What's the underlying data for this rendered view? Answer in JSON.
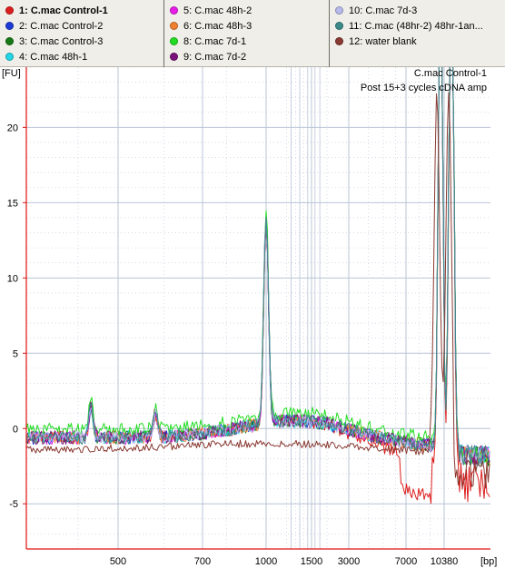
{
  "legend": {
    "columns": [
      [
        {
          "id": "s1",
          "label": "1: C.mac Control-1",
          "color": "#dd1d1d",
          "selected": true
        },
        {
          "id": "s2",
          "label": "2: C.mac Control-2",
          "color": "#1c3bd6"
        },
        {
          "id": "s3",
          "label": "3: C.mac Control-3",
          "color": "#167a16"
        },
        {
          "id": "s4",
          "label": "4: C.mac 48h-1",
          "color": "#22d6e6"
        }
      ],
      [
        {
          "id": "s5",
          "label": "5: C.mac 48h-2",
          "color": "#e81ee8"
        },
        {
          "id": "s6",
          "label": "6: C.mac 48h-3",
          "color": "#f08030"
        },
        {
          "id": "s7",
          "label": "8: C.mac 7d-1",
          "color": "#22dd22"
        },
        {
          "id": "s8",
          "label": "9: C.mac 7d-2",
          "color": "#7a147a"
        }
      ],
      [
        {
          "id": "s9",
          "label": "10: C.mac 7d-3",
          "color": "#b8baee"
        },
        {
          "id": "s10",
          "label": "11: C.mac (48hr-2) 48hr-1an...",
          "color": "#3b8a8a"
        },
        {
          "id": "s11",
          "label": "12: water blank",
          "color": "#8a3a32"
        }
      ]
    ]
  },
  "annotation": {
    "line1": "C.mac Control-1",
    "line2": "Post 15+3 cycles cDNA amp"
  },
  "colors": {
    "legend_bg": "#efeee8",
    "grid": "#b9c4d6",
    "axis": "#e01010",
    "plot_bg": "#ffffff"
  },
  "chart_data": {
    "type": "line",
    "title": "",
    "ylabel": "[FU]",
    "xlabel": "[bp]",
    "ylim": [
      -8,
      24
    ],
    "y_ticks": [
      -5,
      0,
      5,
      10,
      15,
      20
    ],
    "x_ticks": [
      "500",
      "700",
      "1000",
      "1500",
      "3000",
      "7000",
      "10380"
    ],
    "x_scale": "ladder (non-linear bp)",
    "grid": true,
    "series_names": [
      "1: C.mac Control-1",
      "2: C.mac Control-2",
      "3: C.mac Control-3",
      "4: C.mac 48h-1",
      "5: C.mac 48h-2",
      "6: C.mac 48h-3",
      "8: C.mac 7d-1",
      "9: C.mac 7d-2",
      "10: C.mac 7d-3",
      "11: C.mac (48hr-2) 48hr-1an...",
      "12: water blank"
    ],
    "peaks": [
      {
        "x_bp": 430,
        "fu": 2.8
      },
      {
        "x_bp": 580,
        "fu": 2.0
      },
      {
        "x_bp": 1000,
        "fu": 15.3
      },
      {
        "x_bp": 1500,
        "fu": 2.6
      },
      {
        "x_bp": 10000,
        "fu": 24
      },
      {
        "x_bp": 11500,
        "fu": 24
      }
    ]
  }
}
